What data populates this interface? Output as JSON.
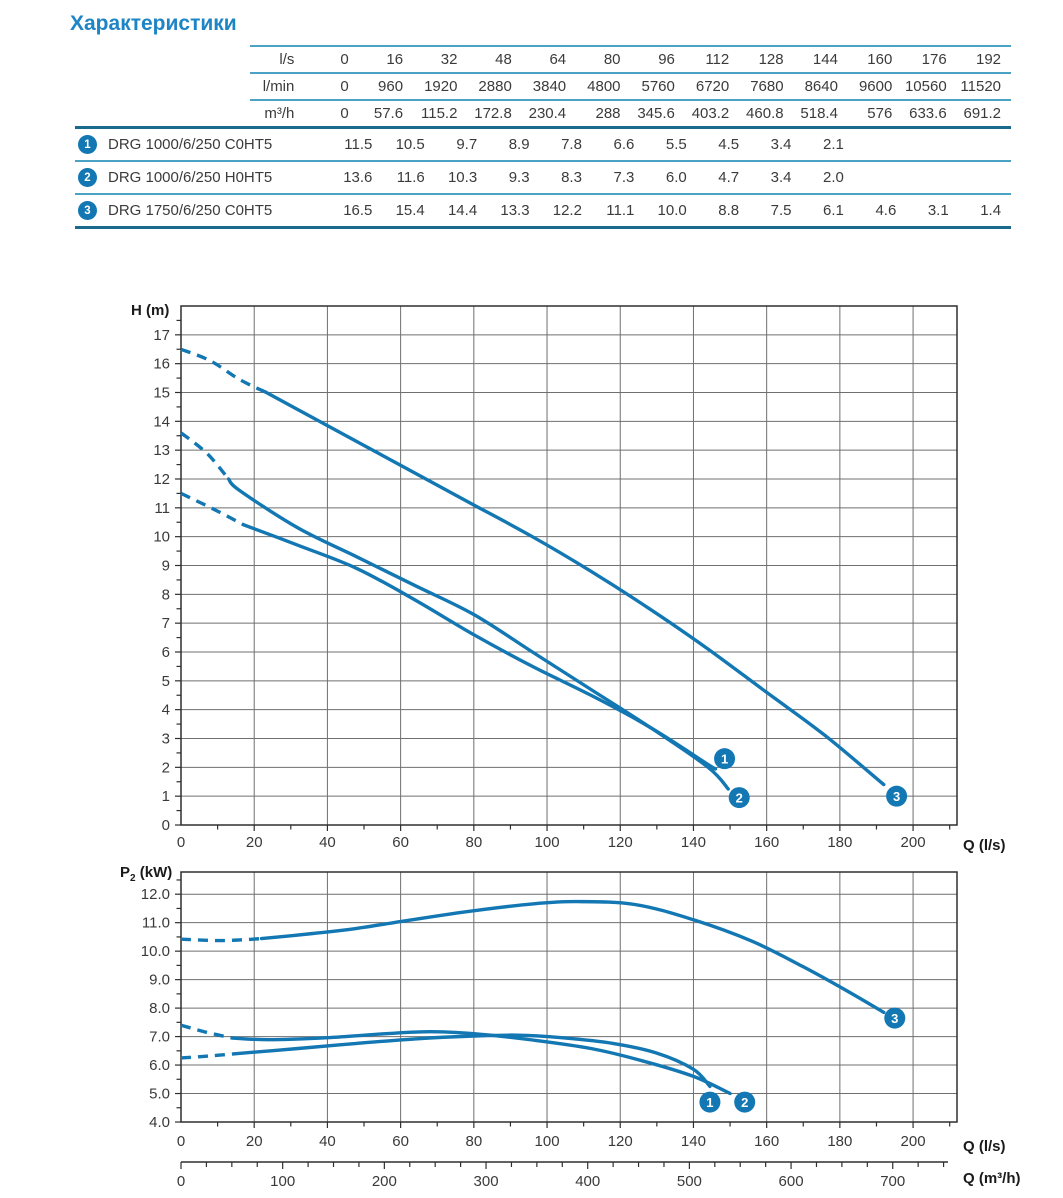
{
  "title": "Характеристики",
  "colors": {
    "curve_blue": "#1277b2",
    "title_blue": "#1d84c5",
    "table_line_light": "#4ba2c5",
    "table_line_dark": "#1a6a8e",
    "grid": "#6f6f6f",
    "frame": "#2f2f2f",
    "text": "#3b3b3b"
  },
  "table": {
    "unit_rows": [
      {
        "label": "l/s",
        "values": [
          "0",
          "16",
          "32",
          "48",
          "64",
          "80",
          "96",
          "112",
          "128",
          "144",
          "160",
          "176",
          "192"
        ]
      },
      {
        "label": "l/min",
        "values": [
          "0",
          "960",
          "1920",
          "2880",
          "3840",
          "4800",
          "5760",
          "6720",
          "7680",
          "8640",
          "9600",
          "10560",
          "11520"
        ]
      },
      {
        "label": "m³/h",
        "values": [
          "0",
          "57.6",
          "115.2",
          "172.8",
          "230.4",
          "288",
          "345.6",
          "403.2",
          "460.8",
          "518.4",
          "576",
          "633.6",
          "691.2"
        ]
      }
    ],
    "pump_rows": [
      {
        "num": "1",
        "name": "DRG 1000/6/250 C0HT5",
        "values": [
          "11.5",
          "10.5",
          "9.7",
          "8.9",
          "7.8",
          "6.6",
          "5.5",
          "4.5",
          "3.4",
          "2.1",
          "",
          "",
          ""
        ]
      },
      {
        "num": "2",
        "name": "DRG 1000/6/250 H0HT5",
        "values": [
          "13.6",
          "11.6",
          "10.3",
          "9.3",
          "8.3",
          "7.3",
          "6.0",
          "4.7",
          "3.4",
          "2.0",
          "",
          "",
          ""
        ]
      },
      {
        "num": "3",
        "name": "DRG 1750/6/250 C0HT5",
        "values": [
          "16.5",
          "15.4",
          "14.4",
          "13.3",
          "12.2",
          "11.1",
          "10.0",
          "8.8",
          "7.5",
          "6.1",
          "4.6",
          "3.1",
          "1.4"
        ]
      }
    ]
  },
  "axes": {
    "head": "H (m)",
    "power_base": "P",
    "power_sub": "2",
    "power_rest": " (kW)",
    "q_ls": "Q (l/s)",
    "q_m3h": "Q (m³/h)"
  },
  "chart_data": [
    {
      "type": "line",
      "id": "head",
      "title": "Head curves",
      "xlabel": "Q (l/s)",
      "ylabel": "H (m)",
      "xlim": [
        0,
        212
      ],
      "ylim": [
        0,
        18
      ],
      "grid": true,
      "xtick_values": [
        0,
        20,
        40,
        60,
        80,
        100,
        120,
        140,
        160,
        180,
        200
      ],
      "xtick_labels": [
        "0",
        "20",
        "40",
        "60",
        "80",
        "100",
        "120",
        "140",
        "160",
        "180",
        "200"
      ],
      "ytick_values": [
        0,
        1,
        2,
        3,
        4,
        5,
        6,
        7,
        8,
        9,
        10,
        11,
        12,
        13,
        14,
        15,
        16,
        17
      ],
      "ytick_labels": [
        "0",
        "1",
        "2",
        "3",
        "4",
        "5",
        "6",
        "7",
        "8",
        "9",
        "10",
        "11",
        "12",
        "13",
        "14",
        "15",
        "16",
        "17"
      ],
      "series": [
        {
          "name": "1",
          "model": "DRG 1000/6/250 C0HT5",
          "dash": [
            [
              0,
              11.5
            ],
            [
              9,
              10.95
            ],
            [
              17,
              10.42
            ]
          ],
          "solid": [
            [
              17,
              10.42
            ],
            [
              32,
              9.7
            ],
            [
              48,
              8.9
            ],
            [
              64,
              7.8
            ],
            [
              80,
              6.6
            ],
            [
              96,
              5.5
            ],
            [
              112,
              4.5
            ],
            [
              128,
              3.4
            ],
            [
              144,
              2.1
            ],
            [
              146,
              1.95
            ]
          ]
        },
        {
          "name": "2",
          "model": "DRG 1000/6/250 H0HT5",
          "dash": [
            [
              0,
              13.6
            ],
            [
              7,
              12.9
            ],
            [
              13,
              12.0
            ]
          ],
          "solid": [
            [
              13,
              12.0
            ],
            [
              16,
              11.6
            ],
            [
              32,
              10.3
            ],
            [
              48,
              9.3
            ],
            [
              64,
              8.3
            ],
            [
              80,
              7.3
            ],
            [
              96,
              6.0
            ],
            [
              112,
              4.7
            ],
            [
              128,
              3.4
            ],
            [
              144,
              2.0
            ],
            [
              149.5,
              1.25
            ]
          ]
        },
        {
          "name": "3",
          "model": "DRG 1750/6/250 C0HT5",
          "dash": [
            [
              0,
              16.5
            ],
            [
              8,
              16.1
            ],
            [
              16,
              15.45
            ],
            [
              23,
              15.02
            ]
          ],
          "solid": [
            [
              23,
              15.02
            ],
            [
              32,
              14.4
            ],
            [
              48,
              13.3
            ],
            [
              64,
              12.2
            ],
            [
              80,
              11.1
            ],
            [
              96,
              10.0
            ],
            [
              112,
              8.8
            ],
            [
              128,
              7.5
            ],
            [
              144,
              6.1
            ],
            [
              160,
              4.6
            ],
            [
              176,
              3.1
            ],
            [
              192,
              1.4
            ]
          ]
        }
      ],
      "markers": [
        {
          "label": "1",
          "x": 148.5,
          "y": 2.3
        },
        {
          "label": "2",
          "x": 152.5,
          "y": 0.95
        },
        {
          "label": "3",
          "x": 195.5,
          "y": 1.0
        }
      ]
    },
    {
      "type": "line",
      "id": "power",
      "title": "Shaft power curves",
      "xlabel": "Q (l/s)",
      "x2label": "Q (m³/h)",
      "ylabel": "P2 (kW)",
      "xlim": [
        0,
        212
      ],
      "ylim": [
        4,
        12.78
      ],
      "grid": true,
      "xtick_values": [
        0,
        20,
        40,
        60,
        80,
        100,
        120,
        140,
        160,
        180,
        200
      ],
      "xtick_labels": [
        "0",
        "20",
        "40",
        "60",
        "80",
        "100",
        "120",
        "140",
        "160",
        "180",
        "200"
      ],
      "ytick_values": [
        4,
        5,
        6,
        7,
        8,
        9,
        10,
        11,
        12
      ],
      "ytick_labels": [
        "4.0",
        "5.0",
        "6.0",
        "7.0",
        "8.0",
        "9.0",
        "10.0",
        "11.0",
        "12.0"
      ],
      "x2tick_values": [
        0,
        100,
        200,
        300,
        400,
        500,
        600,
        700
      ],
      "x2tick_labels": [
        "0",
        "100",
        "200",
        "300",
        "400",
        "500",
        "600",
        "700"
      ],
      "series": [
        {
          "name": "1",
          "model": "DRG 1000/6/250 C0HT5",
          "dash": [
            [
              0,
              6.25
            ],
            [
              8,
              6.32
            ],
            [
              15,
              6.4
            ]
          ],
          "solid": [
            [
              15,
              6.4
            ],
            [
              32,
              6.58
            ],
            [
              48,
              6.76
            ],
            [
              64,
              6.92
            ],
            [
              80,
              7.02
            ],
            [
              92,
              7.05
            ],
            [
              104,
              6.96
            ],
            [
              118,
              6.76
            ],
            [
              130,
              6.42
            ],
            [
              140,
              5.85
            ],
            [
              144.5,
              5.25
            ]
          ]
        },
        {
          "name": "2",
          "model": "DRG 1000/6/250 H0HT5",
          "dash": [
            [
              0,
              7.4
            ],
            [
              7,
              7.15
            ],
            [
              14,
              6.95
            ]
          ],
          "solid": [
            [
              14,
              6.95
            ],
            [
              24,
              6.89
            ],
            [
              40,
              6.96
            ],
            [
              56,
              7.1
            ],
            [
              68,
              7.17
            ],
            [
              80,
              7.1
            ],
            [
              96,
              6.88
            ],
            [
              112,
              6.58
            ],
            [
              126,
              6.15
            ],
            [
              140,
              5.6
            ],
            [
              150,
              5.0
            ]
          ]
        },
        {
          "name": "3",
          "model": "DRG 1750/6/250 C0HT5",
          "dash": [
            [
              0,
              10.42
            ],
            [
              11,
              10.37
            ],
            [
              22,
              10.44
            ]
          ],
          "solid": [
            [
              22,
              10.44
            ],
            [
              36,
              10.62
            ],
            [
              48,
              10.8
            ],
            [
              64,
              11.12
            ],
            [
              80,
              11.42
            ],
            [
              96,
              11.66
            ],
            [
              108,
              11.74
            ],
            [
              124,
              11.64
            ],
            [
              140,
              11.1
            ],
            [
              156,
              10.35
            ],
            [
              170,
              9.45
            ],
            [
              182,
              8.6
            ],
            [
              192,
              7.85
            ]
          ]
        }
      ],
      "markers": [
        {
          "label": "1",
          "x": 144.5,
          "y": 4.7
        },
        {
          "label": "2",
          "x": 154,
          "y": 4.7
        },
        {
          "label": "3",
          "x": 195,
          "y": 7.65
        }
      ]
    }
  ]
}
